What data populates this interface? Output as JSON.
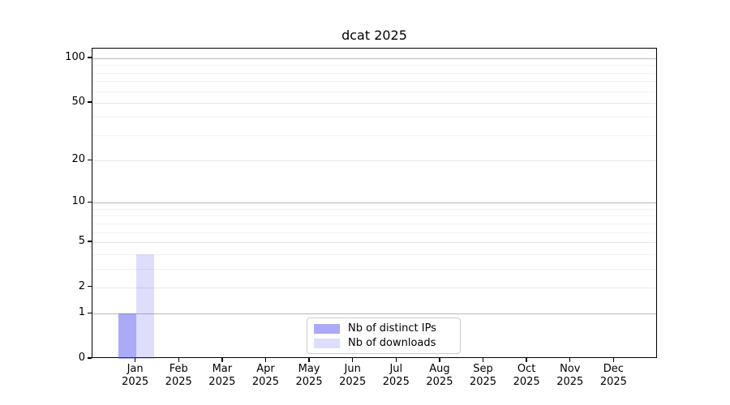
{
  "title": "dcat 2025",
  "chart_data": {
    "type": "bar",
    "title": "dcat 2025",
    "categories": [
      "Jan 2025",
      "Feb 2025",
      "Mar 2025",
      "Apr 2025",
      "May 2025",
      "Jun 2025",
      "Jul 2025",
      "Aug 2025",
      "Sep 2025",
      "Oct 2025",
      "Nov 2025",
      "Dec 2025"
    ],
    "series": [
      {
        "name": "Nb of distinct IPs",
        "color": "#5555ee80",
        "values": [
          1,
          0,
          0,
          0,
          0,
          0,
          0,
          0,
          0,
          0,
          0,
          0
        ]
      },
      {
        "name": "Nb of downloads",
        "color": "#5555ee33",
        "values": [
          4,
          0,
          0,
          0,
          0,
          0,
          0,
          0,
          0,
          0,
          0,
          0
        ]
      }
    ],
    "xlabel": "",
    "ylabel": "",
    "y_scale": "log1p",
    "ylim": [
      0,
      115
    ],
    "y_ticks": [
      0,
      1,
      2,
      5,
      10,
      20,
      50,
      100
    ],
    "y_minor_gridlines": [
      3,
      4,
      6,
      7,
      8,
      9,
      30,
      40,
      60,
      70,
      80,
      90
    ],
    "emphasized_gridlines": [
      1,
      10,
      100
    ],
    "grid": true,
    "legend_position": "lower center"
  },
  "colors": {
    "spine": "#000000",
    "text": "#000000",
    "grid_minor": "#f1f1f1",
    "grid_major": "#e7e7e7",
    "grid_emphasis": "#b8b8b8",
    "legend_border": "#cccccc",
    "background": "#ffffff"
  }
}
